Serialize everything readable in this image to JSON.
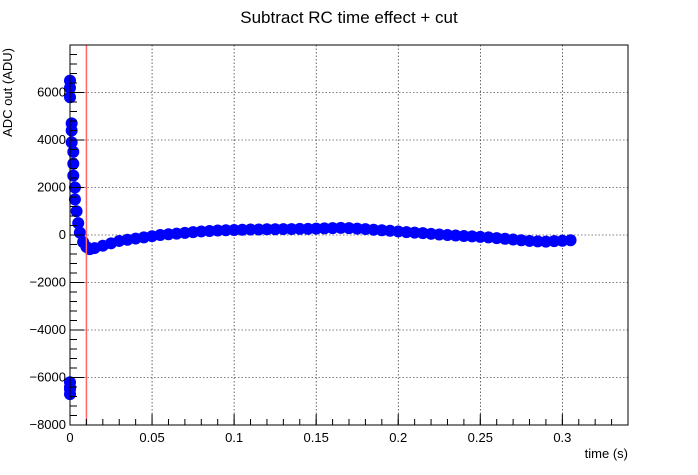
{
  "chart_data": {
    "type": "scatter",
    "title": "Subtract RC time effect + cut",
    "xlabel": "time (s)",
    "ylabel": "ADC out (ADU)",
    "xlim": [
      0,
      0.34
    ],
    "ylim": [
      -8000,
      8000
    ],
    "x_ticks": [
      0,
      0.05,
      0.1,
      0.15,
      0.2,
      0.25,
      0.3
    ],
    "x_tick_labels": [
      "0",
      "0.05",
      "0.1",
      "0.15",
      "0.2",
      "0.25",
      "0.3"
    ],
    "y_ticks": [
      -8000,
      -6000,
      -4000,
      -2000,
      0,
      2000,
      4000,
      6000
    ],
    "y_tick_labels": [
      "−8000",
      "−6000",
      "−4000",
      "−2000",
      "0",
      "2000",
      "4000",
      "6000"
    ],
    "grid": true,
    "marker_color": "#0000ff",
    "cut_line": {
      "x": 0.01,
      "color": "#ff6666"
    },
    "series": [
      {
        "x": [
          0,
          0,
          0,
          0,
          0,
          0,
          0,
          0.001,
          0.001,
          0.001,
          0.002,
          0.002,
          0.002,
          0.003,
          0.003,
          0.004,
          0.005,
          0.006,
          0.008,
          0.01,
          0.012,
          0.015,
          0.02,
          0.025,
          0.03,
          0.035,
          0.04,
          0.045,
          0.05,
          0.055,
          0.06,
          0.065,
          0.07,
          0.075,
          0.08,
          0.085,
          0.09,
          0.095,
          0.1,
          0.105,
          0.11,
          0.115,
          0.12,
          0.125,
          0.13,
          0.135,
          0.14,
          0.145,
          0.15,
          0.155,
          0.16,
          0.165,
          0.17,
          0.175,
          0.18,
          0.185,
          0.19,
          0.195,
          0.2,
          0.205,
          0.21,
          0.215,
          0.22,
          0.225,
          0.23,
          0.235,
          0.24,
          0.245,
          0.25,
          0.255,
          0.26,
          0.265,
          0.27,
          0.275,
          0.28,
          0.285,
          0.29,
          0.295,
          0.3,
          0.305
        ],
        "y": [
          6500,
          6200,
          5800,
          -6200,
          -6500,
          -6700,
          -6400,
          4700,
          4400,
          3900,
          3500,
          3000,
          2500,
          2000,
          1500,
          1000,
          500,
          100,
          -300,
          -500,
          -600,
          -550,
          -450,
          -350,
          -250,
          -200,
          -150,
          -100,
          -50,
          0,
          30,
          60,
          90,
          120,
          150,
          170,
          190,
          200,
          210,
          220,
          230,
          230,
          240,
          240,
          250,
          250,
          260,
          260,
          270,
          280,
          290,
          300,
          290,
          270,
          250,
          220,
          200,
          180,
          150,
          120,
          100,
          80,
          50,
          20,
          0,
          -20,
          -40,
          -60,
          -80,
          -100,
          -130,
          -160,
          -190,
          -220,
          -250,
          -270,
          -280,
          -260,
          -240,
          -220
        ]
      }
    ]
  }
}
